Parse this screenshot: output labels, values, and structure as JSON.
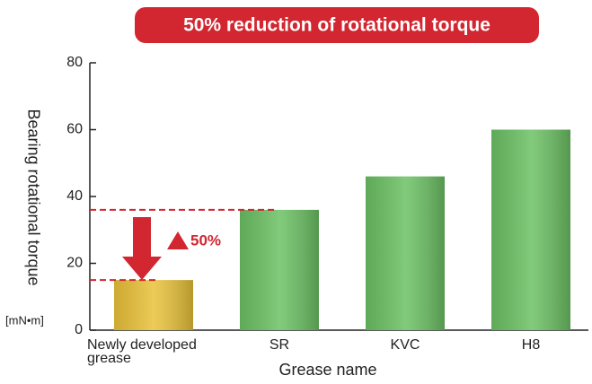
{
  "chart_data": {
    "type": "bar",
    "title": "50% reduction of rotational torque",
    "ylabel": "Bearing rotational torque",
    "yunit": "[mN•m]",
    "xlabel": "Grease name",
    "categories": [
      "Newly developed grease",
      "SR",
      "KVC",
      "H8"
    ],
    "values": [
      15,
      36,
      46,
      60
    ],
    "colors": [
      "#e9c23a",
      "#6cc164",
      "#6cc164",
      "#6cc164"
    ],
    "annotation": "50%",
    "annotation_color": "#d22630",
    "ylim": [
      0,
      80
    ],
    "yticks": [
      0,
      20,
      40,
      60,
      80
    ],
    "grid": false
  }
}
